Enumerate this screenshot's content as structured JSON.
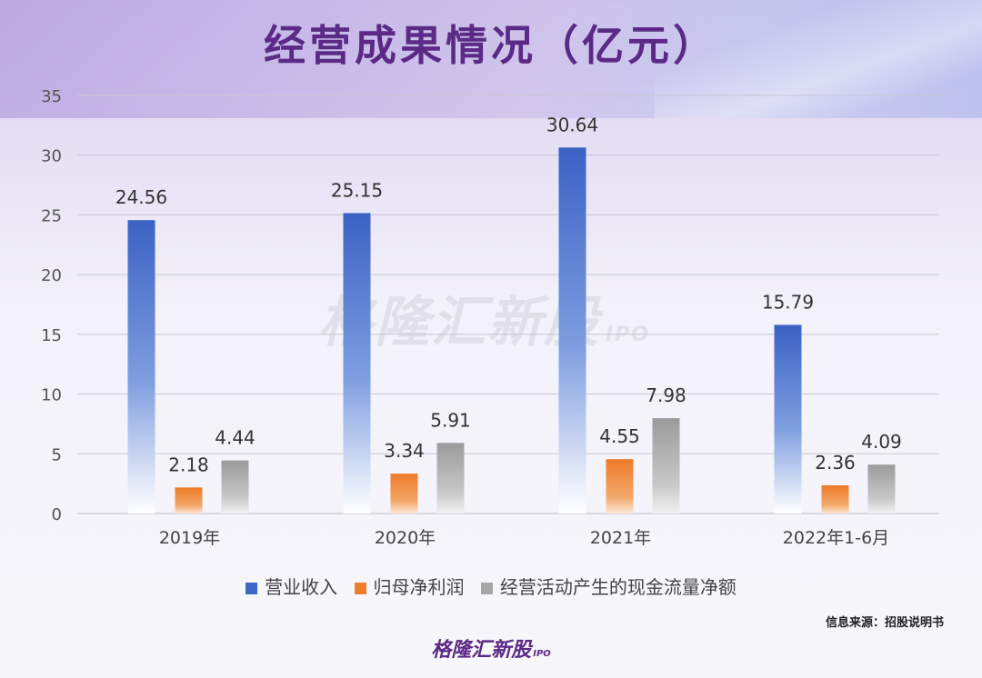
{
  "title": "经营成果情况（亿元）",
  "watermark": {
    "text": "格隆汇新股",
    "ipo": "IPO"
  },
  "source": "信息来源：招股说明书",
  "brand": {
    "text": "格隆汇新股",
    "ipo": "IPO"
  },
  "colors": {
    "title": "#5b2a86",
    "revenue": "#3e68c7",
    "profit": "#ef7f2f",
    "cashflow": "#a6a6a6"
  },
  "chart_data": {
    "type": "bar",
    "title": "经营成果情况（亿元）",
    "categories": [
      "2019年",
      "2020年",
      "2021年",
      "2022年1-6月"
    ],
    "series": [
      {
        "name": "营业收入",
        "values": [
          24.56,
          25.15,
          30.64,
          15.79
        ],
        "labels": [
          "24.56",
          "25.15",
          "30.64",
          "15.79"
        ]
      },
      {
        "name": "归母净利润",
        "values": [
          2.18,
          3.34,
          4.55,
          2.36
        ],
        "labels": [
          "2.18",
          "3.34",
          "4.55",
          "2.36"
        ]
      },
      {
        "name": "经营活动产生的现金流量净额",
        "values": [
          4.44,
          5.91,
          7.98,
          4.09
        ],
        "labels": [
          "4.44",
          "5.91",
          "7.98",
          "4.09"
        ]
      }
    ],
    "ylim": [
      0,
      35
    ],
    "yticks": [
      0,
      5,
      10,
      15,
      20,
      25,
      30,
      35
    ],
    "xlabel": "",
    "ylabel": "",
    "grid": true,
    "legend": "bottom"
  }
}
